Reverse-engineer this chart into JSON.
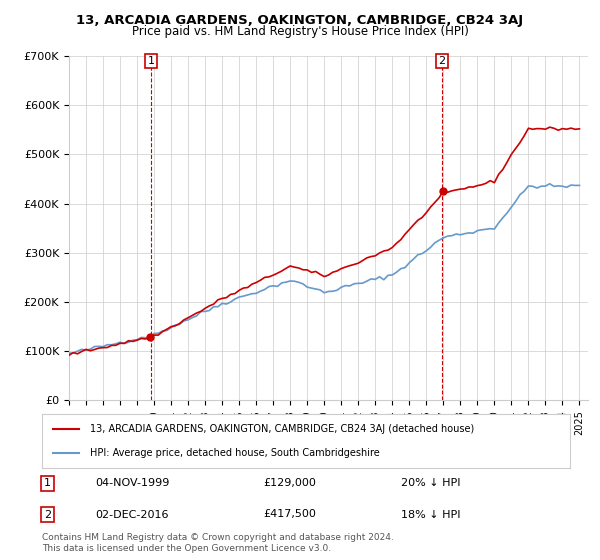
{
  "title": "13, ARCADIA GARDENS, OAKINGTON, CAMBRIDGE, CB24 3AJ",
  "subtitle": "Price paid vs. HM Land Registry's House Price Index (HPI)",
  "legend_line1": "13, ARCADIA GARDENS, OAKINGTON, CAMBRIDGE, CB24 3AJ (detached house)",
  "legend_line2": "HPI: Average price, detached house, South Cambridgeshire",
  "annotation1": {
    "num": "1",
    "date": "04-NOV-1999",
    "price": "£129,000",
    "hpi": "20% ↓ HPI",
    "year": 1999.83
  },
  "annotation2": {
    "num": "2",
    "date": "02-DEC-2016",
    "price": "£417,500",
    "hpi": "18% ↓ HPI",
    "year": 2016.92
  },
  "footnote": "Contains HM Land Registry data © Crown copyright and database right 2024.\nThis data is licensed under the Open Government Licence v3.0.",
  "hpi_color": "#6699cc",
  "price_color": "#cc0000",
  "marker_color": "#cc0000",
  "vline_color": "#cc0000",
  "annotation_box_color": "#cc0000",
  "background_color": "#ffffff",
  "grid_color": "#cccccc",
  "ylim": [
    0,
    700000
  ],
  "yticks": [
    0,
    100000,
    200000,
    300000,
    400000,
    500000,
    600000,
    700000
  ],
  "ylabel_format": "£{0}K",
  "xmin": 1995,
  "xmax": 2025.5
}
